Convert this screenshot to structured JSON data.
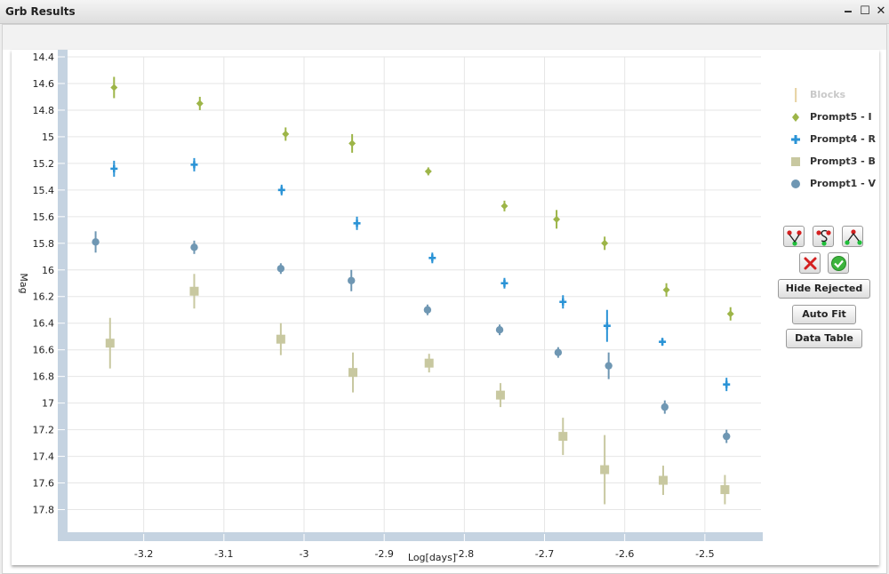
{
  "window": {
    "title": "Grb Results",
    "minimize_glyph": "🗕",
    "maximize_glyph": "☐",
    "close_glyph": "✕"
  },
  "buttons": {
    "hide_rejected": "Hide Rejected",
    "auto_fit": "Auto Fit",
    "data_table": "Data Table",
    "icons": [
      "fit-v-icon",
      "fit-s-icon",
      "fit-a-icon",
      "reject-x-icon",
      "accept-check-icon"
    ]
  },
  "chart_data": {
    "type": "scatter",
    "xlabel": "Log[days]",
    "ylabel": "Mag",
    "xlim": [
      -3.295,
      -2.43
    ],
    "ylim": [
      14.4,
      17.97
    ],
    "y_inverted": false,
    "x_ticks": [
      "-3.2",
      "-3.1",
      "-3",
      "-2.9",
      "-2.8",
      "-2.7",
      "-2.6",
      "-2.5"
    ],
    "x_tick_values": [
      -3.2,
      -3.1,
      -3.0,
      -2.9,
      -2.8,
      -2.7,
      -2.6,
      -2.5
    ],
    "y_ticks": [
      "14.4",
      "14.6",
      "14.8",
      "15",
      "15.2",
      "15.4",
      "15.6",
      "15.8",
      "16",
      "16.2",
      "16.4",
      "16.6",
      "16.8",
      "17",
      "17.2",
      "17.4",
      "17.6",
      "17.8"
    ],
    "y_tick_values": [
      14.4,
      14.6,
      14.8,
      15.0,
      15.2,
      15.4,
      15.6,
      15.8,
      16.0,
      16.2,
      16.4,
      16.6,
      16.8,
      17.0,
      17.2,
      17.4,
      17.6,
      17.8
    ],
    "grid": true,
    "legend_position": "right",
    "legend": [
      {
        "name": "Blocks",
        "marker": "bar",
        "color": "#e8d5a8",
        "disabled": true
      },
      {
        "name": "Prompt5 - I",
        "marker": "diamond",
        "color": "#9db548"
      },
      {
        "name": "Prompt4 - R",
        "marker": "plus",
        "color": "#2a93d6"
      },
      {
        "name": "Prompt3 - B",
        "marker": "square",
        "color": "#c8c8a0"
      },
      {
        "name": "Prompt1 - V",
        "marker": "circle",
        "color": "#6f97b3"
      }
    ],
    "series": [
      {
        "name": "Prompt5 - I",
        "marker": "diamond",
        "color": "#9db548",
        "x": [
          -3.237,
          -3.13,
          -3.023,
          -2.94,
          -2.845,
          -2.75,
          -2.685,
          -2.625,
          -2.548,
          -2.468
        ],
        "y": [
          14.63,
          14.75,
          14.98,
          15.05,
          15.26,
          15.52,
          15.62,
          15.8,
          16.15,
          16.33
        ],
        "err": [
          0.08,
          0.05,
          0.05,
          0.07,
          0.03,
          0.04,
          0.07,
          0.05,
          0.05,
          0.05
        ]
      },
      {
        "name": "Prompt4 - R",
        "marker": "plus",
        "color": "#2a93d6",
        "x": [
          -3.237,
          -3.137,
          -3.028,
          -2.934,
          -2.84,
          -2.75,
          -2.677,
          -2.622,
          -2.553,
          -2.473
        ],
        "y": [
          15.24,
          15.21,
          15.4,
          15.65,
          15.91,
          16.1,
          16.24,
          16.42,
          16.54,
          16.86
        ],
        "err": [
          0.06,
          0.05,
          0.04,
          0.05,
          0.04,
          0.04,
          0.05,
          0.12,
          0.03,
          0.05
        ]
      },
      {
        "name": "Prompt3 - B",
        "marker": "square",
        "color": "#c8c8a0",
        "x": [
          -3.242,
          -3.137,
          -3.029,
          -2.939,
          -2.844,
          -2.755,
          -2.677,
          -2.625,
          -2.552,
          -2.475
        ],
        "y": [
          16.55,
          16.16,
          16.52,
          16.77,
          16.7,
          16.94,
          17.25,
          17.5,
          17.58,
          17.65
        ],
        "err": [
          0.19,
          0.13,
          0.12,
          0.15,
          0.07,
          0.09,
          0.14,
          0.26,
          0.11,
          0.11
        ]
      },
      {
        "name": "Prompt1 - V",
        "marker": "circle",
        "color": "#6f97b3",
        "x": [
          -3.26,
          -3.137,
          -3.029,
          -2.941,
          -2.846,
          -2.756,
          -2.683,
          -2.62,
          -2.55,
          -2.473
        ],
        "y": [
          15.79,
          15.83,
          15.99,
          16.08,
          16.3,
          16.45,
          16.62,
          16.72,
          17.03,
          17.25
        ],
        "err": [
          0.08,
          0.05,
          0.04,
          0.08,
          0.04,
          0.04,
          0.04,
          0.1,
          0.05,
          0.05
        ]
      }
    ]
  }
}
